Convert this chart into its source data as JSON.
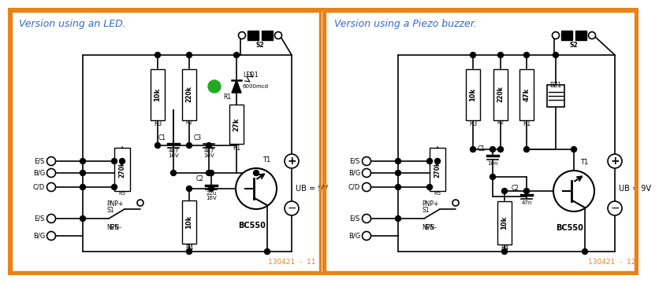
{
  "bg_color": "#ffffff",
  "border_color": "#E8821A",
  "title_left": "Version using an LED.",
  "title_right": "Version using a Piezo buzzer.",
  "title_color": "#3366cc",
  "title_fontsize": 9,
  "ref_left": "130421  -  11",
  "ref_right": "130421  -  12",
  "ref_color": "#E8821A",
  "ref_fontsize": 6.5,
  "ub_text": "UB = 9V",
  "green_led_color": "#22aa22",
  "lw": 1.2,
  "node_r": 3.5,
  "open_r": 5.5
}
